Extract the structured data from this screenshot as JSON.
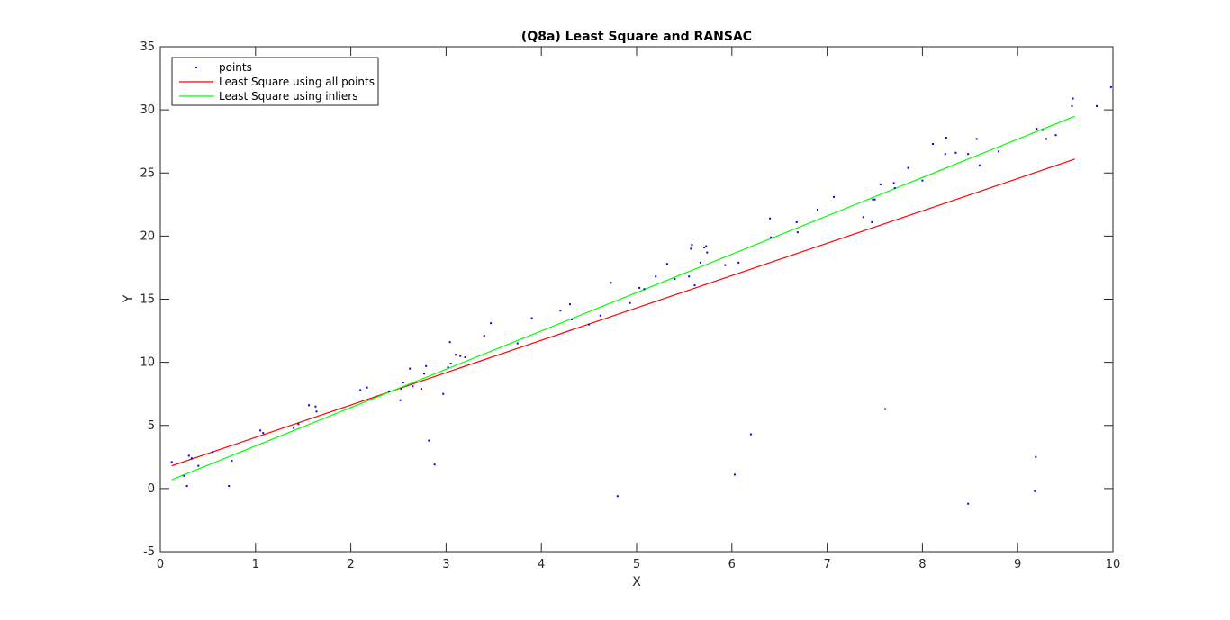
{
  "chart_data": {
    "type": "scatter",
    "title": "(Q8a) Least Square and RANSAC",
    "xlabel": "X",
    "ylabel": "Y",
    "xlim": [
      0,
      10
    ],
    "ylim": [
      -5,
      35
    ],
    "xticks": [
      0,
      1,
      2,
      3,
      4,
      5,
      6,
      7,
      8,
      9,
      10
    ],
    "yticks": [
      -5,
      0,
      5,
      10,
      15,
      20,
      25,
      30,
      35
    ],
    "grid": false,
    "legend_location": "top-left",
    "colors": {
      "points": "#0000ff",
      "ls_all": "#ff0000",
      "ls_inliers": "#00ff00",
      "axis": "#262626"
    },
    "series": [
      {
        "name": "points",
        "kind": "scatter",
        "points": [
          [
            0.12,
            2.1
          ],
          [
            0.25,
            1.0
          ],
          [
            0.28,
            0.2
          ],
          [
            0.3,
            2.6
          ],
          [
            0.33,
            2.4
          ],
          [
            0.4,
            1.8
          ],
          [
            0.55,
            2.9
          ],
          [
            0.72,
            0.2
          ],
          [
            0.75,
            2.2
          ],
          [
            1.05,
            4.6
          ],
          [
            1.08,
            4.4
          ],
          [
            1.4,
            4.8
          ],
          [
            1.45,
            5.1
          ],
          [
            1.56,
            6.6
          ],
          [
            1.63,
            6.5
          ],
          [
            1.64,
            6.1
          ],
          [
            2.1,
            7.8
          ],
          [
            2.17,
            8.0
          ],
          [
            2.4,
            7.7
          ],
          [
            2.52,
            7.0
          ],
          [
            2.53,
            7.9
          ],
          [
            2.55,
            8.4
          ],
          [
            2.62,
            9.5
          ],
          [
            2.65,
            8.1
          ],
          [
            2.74,
            7.9
          ],
          [
            2.77,
            9.1
          ],
          [
            2.79,
            9.7
          ],
          [
            2.82,
            3.8
          ],
          [
            2.88,
            1.9
          ],
          [
            2.97,
            7.5
          ],
          [
            3.02,
            9.6
          ],
          [
            3.04,
            11.6
          ],
          [
            3.05,
            9.9
          ],
          [
            3.1,
            10.6
          ],
          [
            3.15,
            10.5
          ],
          [
            3.2,
            10.4
          ],
          [
            3.4,
            12.1
          ],
          [
            3.47,
            13.1
          ],
          [
            3.75,
            11.5
          ],
          [
            3.9,
            13.5
          ],
          [
            4.2,
            14.1
          ],
          [
            4.3,
            14.6
          ],
          [
            4.32,
            13.4
          ],
          [
            4.5,
            13.0
          ],
          [
            4.62,
            13.7
          ],
          [
            4.73,
            16.3
          ],
          [
            4.8,
            -0.6
          ],
          [
            4.93,
            14.7
          ],
          [
            5.03,
            15.9
          ],
          [
            5.08,
            15.8
          ],
          [
            5.2,
            16.8
          ],
          [
            5.32,
            17.8
          ],
          [
            5.4,
            16.6
          ],
          [
            5.55,
            16.8
          ],
          [
            5.57,
            19.0
          ],
          [
            5.58,
            19.3
          ],
          [
            5.61,
            16.1
          ],
          [
            5.67,
            17.9
          ],
          [
            5.71,
            19.1
          ],
          [
            5.73,
            19.2
          ],
          [
            5.74,
            18.7
          ],
          [
            5.93,
            17.7
          ],
          [
            6.03,
            1.1
          ],
          [
            6.07,
            17.9
          ],
          [
            6.2,
            4.3
          ],
          [
            6.4,
            21.4
          ],
          [
            6.41,
            19.9
          ],
          [
            6.68,
            21.1
          ],
          [
            6.69,
            20.3
          ],
          [
            6.9,
            22.1
          ],
          [
            7.07,
            23.1
          ],
          [
            7.38,
            21.5
          ],
          [
            7.47,
            21.1
          ],
          [
            7.48,
            22.9
          ],
          [
            7.5,
            22.9
          ],
          [
            7.56,
            24.1
          ],
          [
            7.61,
            6.3
          ],
          [
            7.7,
            24.2
          ],
          [
            7.71,
            23.8
          ],
          [
            7.85,
            25.4
          ],
          [
            8.0,
            24.4
          ],
          [
            8.11,
            27.3
          ],
          [
            8.24,
            26.5
          ],
          [
            8.25,
            27.8
          ],
          [
            8.35,
            26.6
          ],
          [
            8.48,
            26.5
          ],
          [
            8.48,
            -1.2
          ],
          [
            8.57,
            27.7
          ],
          [
            8.6,
            25.6
          ],
          [
            8.8,
            26.7
          ],
          [
            9.18,
            -0.2
          ],
          [
            9.19,
            2.5
          ],
          [
            9.2,
            28.5
          ],
          [
            9.26,
            28.4
          ],
          [
            9.3,
            27.7
          ],
          [
            9.4,
            28.0
          ],
          [
            9.57,
            30.3
          ],
          [
            9.58,
            30.9
          ],
          [
            9.83,
            30.3
          ],
          [
            9.98,
            31.8
          ]
        ]
      },
      {
        "name": "Least Square using all points",
        "kind": "line",
        "points": [
          [
            0.12,
            1.8
          ],
          [
            9.6,
            26.1
          ]
        ]
      },
      {
        "name": "Least Square using inliers",
        "kind": "line",
        "points": [
          [
            0.12,
            0.7
          ],
          [
            9.6,
            29.5
          ]
        ]
      }
    ]
  }
}
